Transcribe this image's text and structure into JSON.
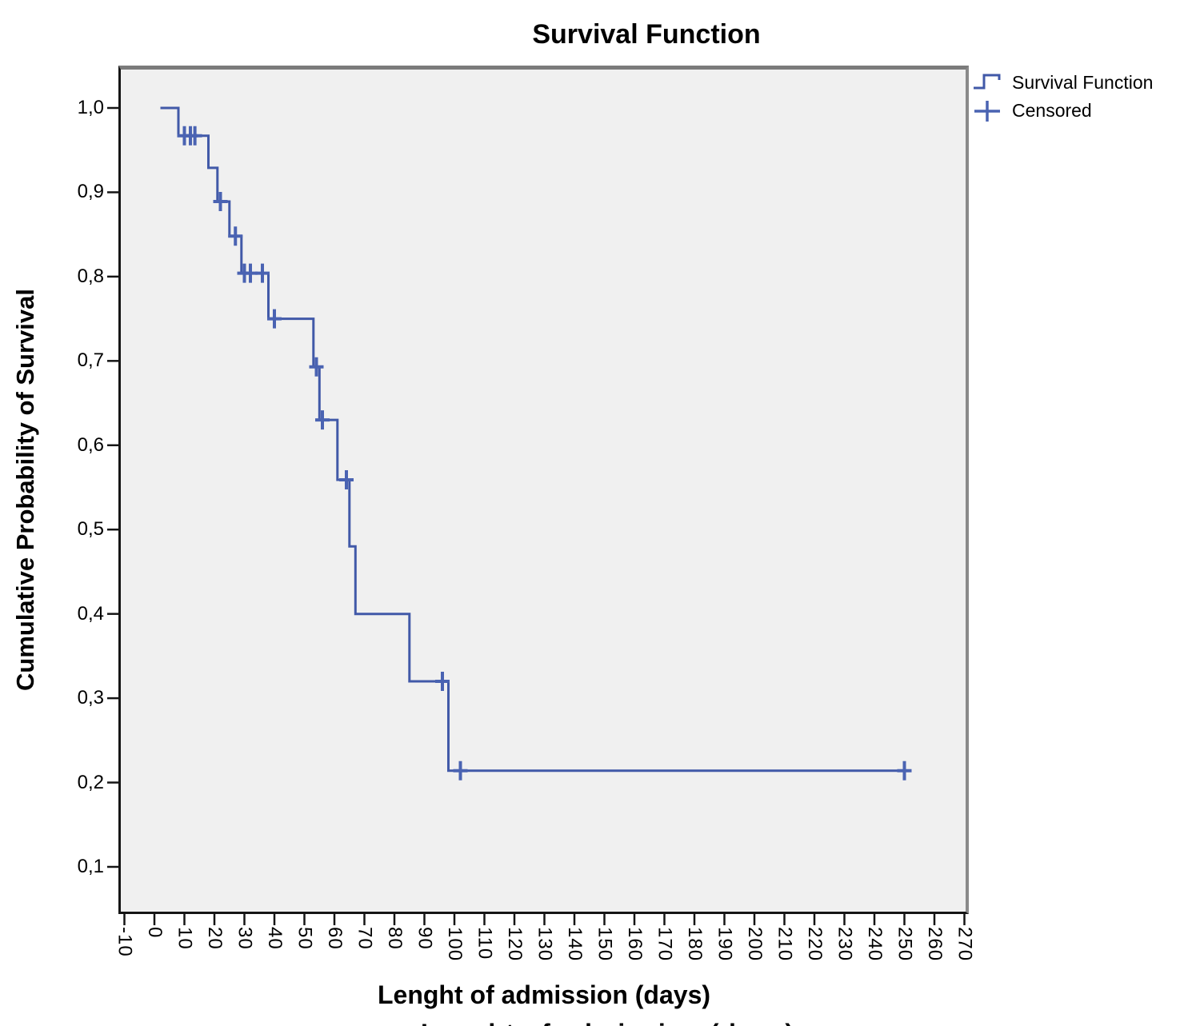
{
  "title": "Survival Function",
  "legend": {
    "items": [
      {
        "label": "Survival Function",
        "glyph": "step-line-icon"
      },
      {
        "label": "Censored",
        "glyph": "plus-icon"
      }
    ]
  },
  "colors": {
    "curve": "#4159A8",
    "censor_mark": "#4A63B2",
    "plot_background": "#F0F0F0",
    "axis": "#151515",
    "frame_gray": "#7B7B7B",
    "text": "#000000"
  },
  "chart_data": {
    "type": "line",
    "subtype": "kaplan-meier-step",
    "title": "Survival Function",
    "xlabel": "Lenght of admission (days)",
    "ylabel": "Cumulative Probability of Survival",
    "grid": false,
    "legend_position": "outside-top-right",
    "xlim": [
      -12,
      271
    ],
    "ylim": [
      0.05,
      1.05
    ],
    "x_ticks": [
      -10,
      0,
      10,
      20,
      30,
      40,
      50,
      60,
      70,
      80,
      90,
      100,
      110,
      120,
      130,
      140,
      150,
      160,
      170,
      180,
      190,
      200,
      210,
      220,
      230,
      240,
      250,
      260,
      270
    ],
    "x_tick_labels": [
      "-10",
      "0",
      "10",
      "20",
      "30",
      "40",
      "50",
      "60",
      "70",
      "80",
      "90",
      "100",
      "110",
      "120",
      "130",
      "140",
      "150",
      "160",
      "170",
      "180",
      "190",
      "200",
      "210",
      "220",
      "230",
      "240",
      "250",
      "260",
      "270"
    ],
    "y_ticks": [
      {
        "value": 1.0,
        "label": "1,0"
      },
      {
        "value": 0.9,
        "label": "0,9"
      },
      {
        "value": 0.8,
        "label": "0,8"
      },
      {
        "value": 0.7,
        "label": "0,7"
      },
      {
        "value": 0.6,
        "label": "0,6"
      },
      {
        "value": 0.5,
        "label": "0,5"
      },
      {
        "value": 0.4,
        "label": "0,4"
      },
      {
        "value": 0.3,
        "label": "0,3"
      },
      {
        "value": 0.2,
        "label": "0,2"
      },
      {
        "value": 0.1,
        "label": "0,1"
      }
    ],
    "series": [
      {
        "name": "Survival Function",
        "type": "step",
        "color": "#4159A8",
        "points": [
          [
            2,
            1.0
          ],
          [
            8,
            1.0
          ],
          [
            8,
            0.967
          ],
          [
            18,
            0.967
          ],
          [
            18,
            0.929
          ],
          [
            21,
            0.929
          ],
          [
            21,
            0.889
          ],
          [
            25,
            0.889
          ],
          [
            25,
            0.848
          ],
          [
            29,
            0.848
          ],
          [
            29,
            0.804
          ],
          [
            38,
            0.804
          ],
          [
            38,
            0.75
          ],
          [
            53,
            0.75
          ],
          [
            53,
            0.693
          ],
          [
            55,
            0.693
          ],
          [
            55,
            0.63
          ],
          [
            61,
            0.63
          ],
          [
            61,
            0.559
          ],
          [
            65,
            0.559
          ],
          [
            65,
            0.48
          ],
          [
            67,
            0.48
          ],
          [
            67,
            0.4
          ],
          [
            85,
            0.4
          ],
          [
            85,
            0.32
          ],
          [
            98,
            0.32
          ],
          [
            98,
            0.214
          ],
          [
            250,
            0.214
          ]
        ]
      },
      {
        "name": "Censored",
        "type": "scatter-plus",
        "color": "#4A63B2",
        "points": [
          [
            10,
            0.967
          ],
          [
            12,
            0.967
          ],
          [
            13.5,
            0.967
          ],
          [
            22,
            0.889
          ],
          [
            27,
            0.848
          ],
          [
            30,
            0.804
          ],
          [
            32,
            0.804
          ],
          [
            36,
            0.804
          ],
          [
            40,
            0.75
          ],
          [
            54,
            0.693
          ],
          [
            56,
            0.63
          ],
          [
            64,
            0.559
          ],
          [
            96,
            0.32
          ],
          [
            102,
            0.214
          ],
          [
            250,
            0.214
          ]
        ]
      }
    ]
  }
}
